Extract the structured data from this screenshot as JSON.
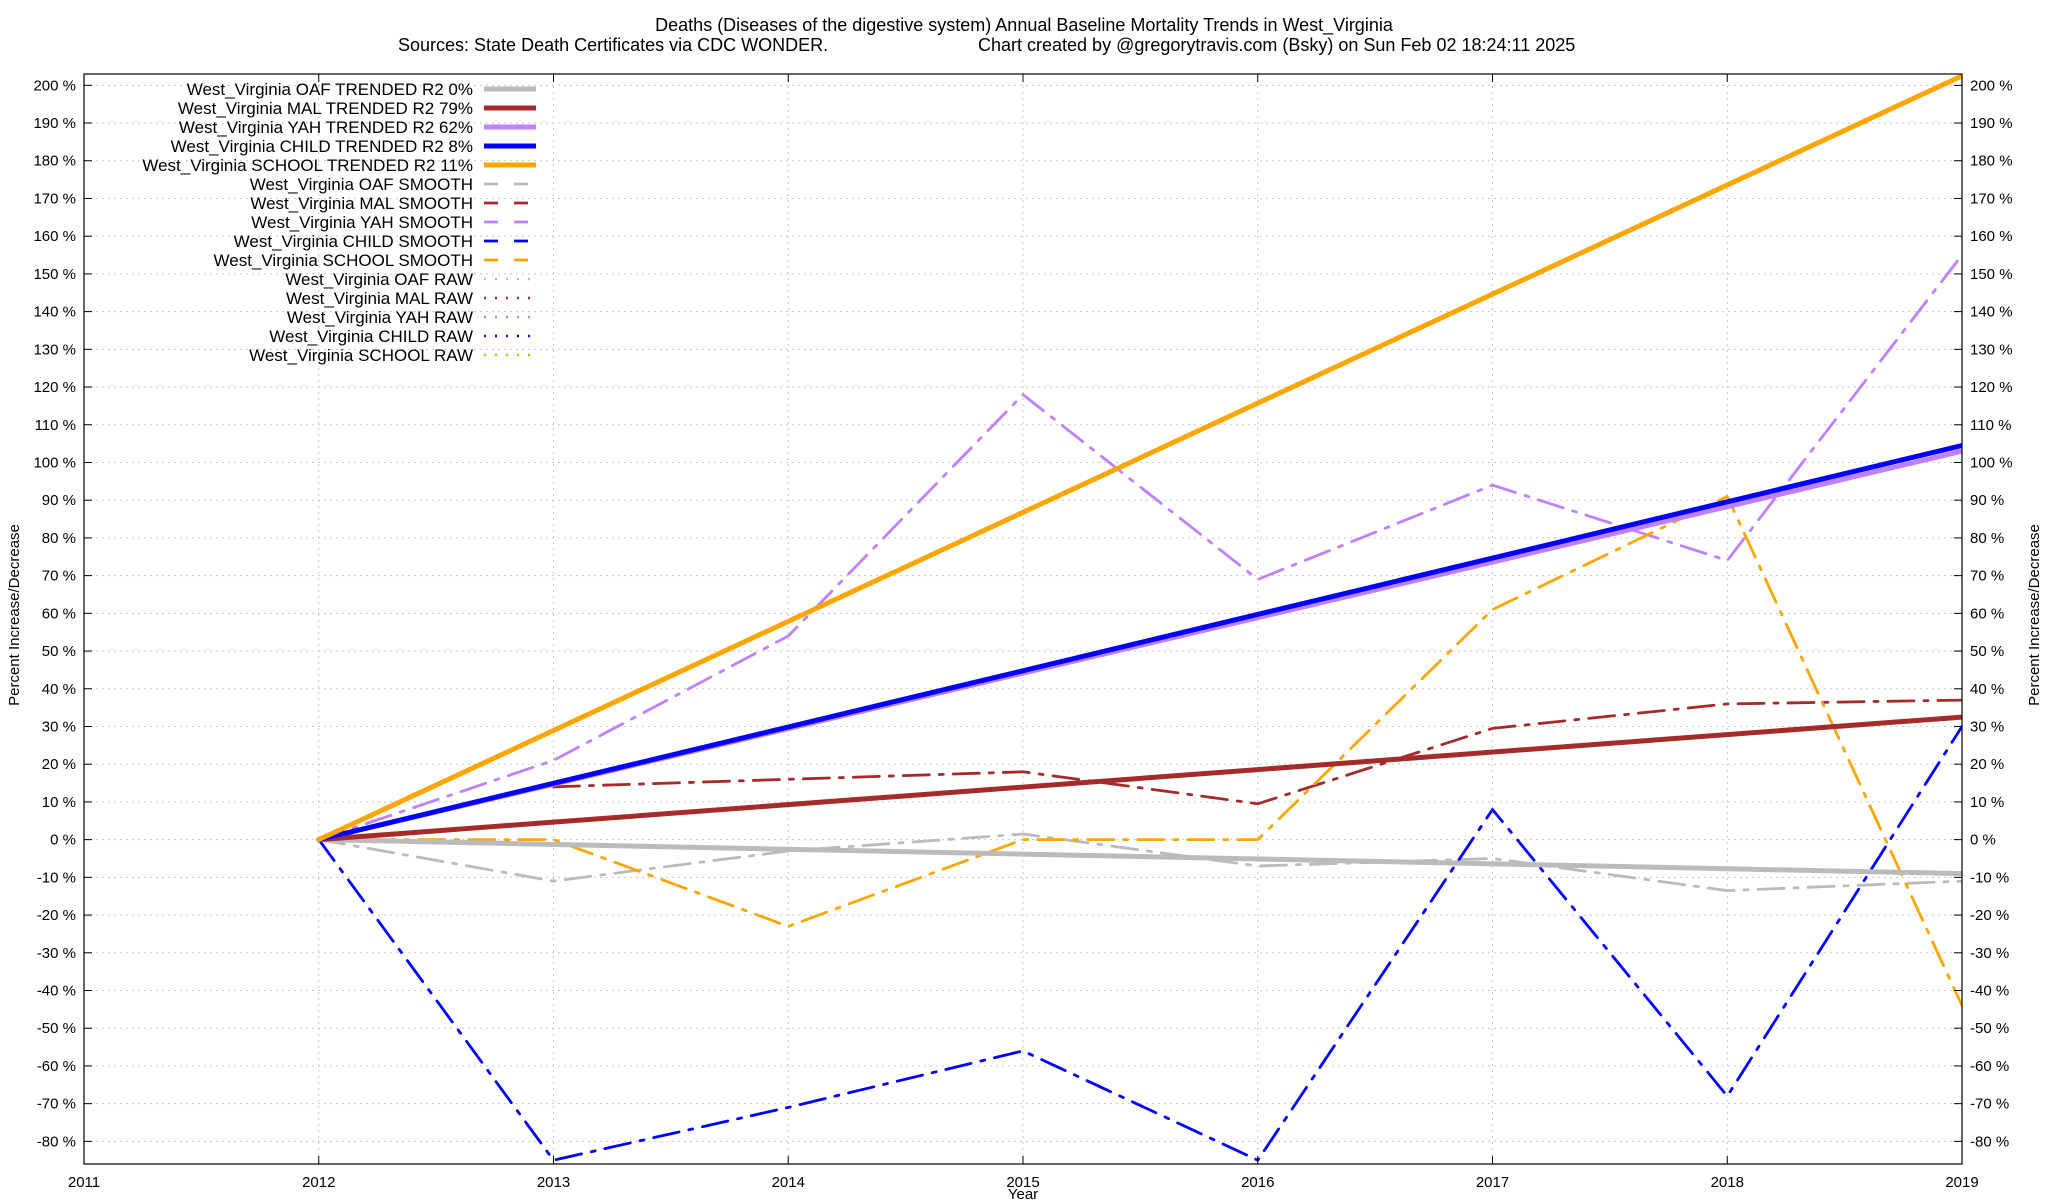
{
  "chart_data": {
    "type": "line",
    "title": "Deaths (Diseases of the digestive system)  Annual Baseline Mortality Trends in West_Virginia",
    "subtitle_left": "Sources: State Death Certificates via CDC WONDER.",
    "subtitle_right": "Chart created by @gregorytravis.com (Bsky) on Sun Feb 02 18:24:11 2025",
    "xlabel": "Year",
    "ylabel_left": "Percent Increase/Decrease",
    "ylabel_right": "Percent Increase/Decrease",
    "xlim": [
      2011,
      2019
    ],
    "ylim": [
      -86,
      203
    ],
    "x_ticks": [
      2011,
      2012,
      2013,
      2014,
      2015,
      2016,
      2017,
      2018,
      2019
    ],
    "y_ticks": [
      -80,
      -70,
      -60,
      -50,
      -40,
      -30,
      -20,
      -10,
      0,
      10,
      20,
      30,
      40,
      50,
      60,
      70,
      80,
      90,
      100,
      110,
      120,
      130,
      140,
      150,
      160,
      170,
      180,
      190,
      200
    ],
    "y_tick_suffix": " %",
    "grid": true,
    "legend_position": "top-left",
    "series": [
      {
        "name": "West_Virginia OAF TRENDED R2  0%",
        "kind": "trend",
        "color": "#bbbbbb",
        "x": [
          2012,
          2019
        ],
        "y": [
          0,
          -9
        ]
      },
      {
        "name": "West_Virginia MAL TRENDED R2  79%",
        "kind": "trend",
        "color": "#a52a2a",
        "x": [
          2012,
          2019
        ],
        "y": [
          0,
          32.5
        ]
      },
      {
        "name": "West_Virginia YAH TRENDED R2  62%",
        "kind": "trend",
        "color": "#c080ff",
        "x": [
          2012,
          2019
        ],
        "y": [
          0,
          103
        ]
      },
      {
        "name": "West_Virginia CHILD TRENDED R2  8%",
        "kind": "trend",
        "color": "#0000ff",
        "x": [
          2012,
          2019
        ],
        "y": [
          0,
          104.5
        ]
      },
      {
        "name": "West_Virginia SCHOOL TRENDED R2  11%",
        "kind": "trend",
        "color": "#ffa500",
        "x": [
          2012,
          2019
        ],
        "y": [
          0,
          202.5
        ]
      },
      {
        "name": "West_Virginia OAF SMOOTH",
        "kind": "smooth",
        "color": "#bbbbbb",
        "x": [
          2012,
          2013,
          2014,
          2015,
          2016,
          2017,
          2018,
          2019
        ],
        "y": [
          0,
          -11,
          -3,
          1.5,
          -7,
          -5,
          -13.5,
          -11
        ]
      },
      {
        "name": "West_Virginia MAL SMOOTH",
        "kind": "smooth",
        "color": "#a52a2a",
        "x": [
          2013,
          2014,
          2015,
          2016,
          2017,
          2018,
          2019
        ],
        "y": [
          14,
          16,
          18,
          9.5,
          29.5,
          36,
          37
        ]
      },
      {
        "name": "West_Virginia YAH SMOOTH",
        "kind": "smooth",
        "color": "#c080ff",
        "x": [
          2012,
          2013,
          2014,
          2015,
          2016,
          2017,
          2018,
          2019
        ],
        "y": [
          0,
          21,
          54,
          118,
          69,
          94,
          74,
          155
        ]
      },
      {
        "name": "West_Virginia CHILD SMOOTH",
        "kind": "smooth",
        "color": "#0000ff",
        "x": [
          2012,
          2013,
          2014,
          2015,
          2016,
          2017,
          2018,
          2019
        ],
        "y": [
          0,
          -85,
          -71,
          -56,
          -85,
          8,
          -68,
          30
        ]
      },
      {
        "name": "West_Virginia SCHOOL SMOOTH",
        "kind": "smooth",
        "color": "#ffa500",
        "x": [
          2012,
          2013,
          2014,
          2015,
          2016,
          2017,
          2018,
          2019
        ],
        "y": [
          0,
          0,
          -23,
          0,
          0,
          61,
          91,
          -44
        ]
      },
      {
        "name": "West_Virginia OAF RAW",
        "kind": "raw",
        "color": "#bbbbbb",
        "x": [],
        "y": []
      },
      {
        "name": "West_Virginia MAL RAW",
        "kind": "raw",
        "color": "#a52a2a",
        "x": [],
        "y": []
      },
      {
        "name": "West_Virginia YAH RAW",
        "kind": "raw",
        "color": "#c080ff",
        "x": [],
        "y": []
      },
      {
        "name": "West_Virginia CHILD RAW",
        "kind": "raw",
        "color": "#0000ff",
        "x": [],
        "y": []
      },
      {
        "name": "West_Virginia SCHOOL RAW",
        "kind": "raw",
        "color": "#ffa500",
        "x": [],
        "y": []
      }
    ]
  }
}
